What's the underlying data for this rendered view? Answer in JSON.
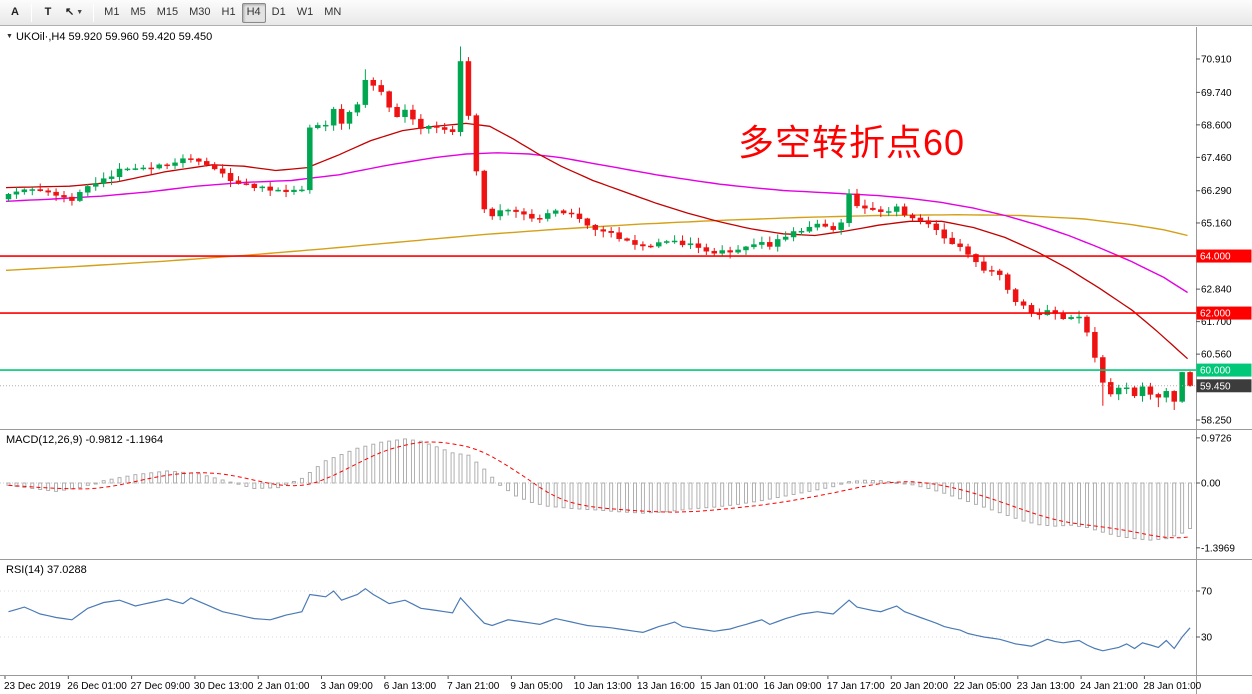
{
  "toolbar": {
    "tools": [
      {
        "label": "A"
      },
      {
        "label": "T"
      },
      {
        "label": "↖",
        "caret": "▼"
      }
    ],
    "timeframes": [
      {
        "label": "M1"
      },
      {
        "label": "M5"
      },
      {
        "label": "M15"
      },
      {
        "label": "M30"
      },
      {
        "label": "H1"
      },
      {
        "label": "H4"
      },
      {
        "label": "D1"
      },
      {
        "label": "W1"
      },
      {
        "label": "MN"
      }
    ],
    "active_timeframe": "H4"
  },
  "main": {
    "collapse_icon": "▼",
    "symbol_line": "UKOil·,H4 59.920 59.960 59.420 59.450",
    "annotation": {
      "text": "多空转折点60",
      "color": "#FF0000"
    },
    "macd_label": "MACD(12,26,9) -0.9812 -1.1964",
    "rsi_label": "RSI(14) 37.0288"
  },
  "colors": {
    "up_candle": "#00A650",
    "down_candle": "#EE1212",
    "ma_red": "#C40000",
    "ma_magenta": "#E300E3",
    "ma_orange": "#D4A017",
    "hline_red": "#FF0000",
    "hline_green": "#00C878",
    "bid_label_bg": "#3C3C3C",
    "macd_hist": "#A8A8A8",
    "macd_signal": "#FF0000",
    "rsi_line": "#4A7AB5",
    "axis_text": "#000000",
    "separator": "#9A9A9A"
  },
  "chart_data": {
    "type": "candlestick",
    "symbol": "UKOil",
    "timeframe": "H4",
    "ohlc_display": {
      "open": "59.920",
      "high": "59.960",
      "low": "59.420",
      "close": "59.450"
    },
    "bars": 150,
    "price_ticks": [
      {
        "v": 70.91,
        "label": "70.910"
      },
      {
        "v": 69.74,
        "label": "69.740"
      },
      {
        "v": 68.6,
        "label": "68.600"
      },
      {
        "v": 67.46,
        "label": "67.460"
      },
      {
        "v": 66.29,
        "label": "66.290"
      },
      {
        "v": 65.16,
        "label": "65.160"
      },
      {
        "v": 62.84,
        "label": "62.840"
      },
      {
        "v": 61.7,
        "label": "61.700"
      },
      {
        "v": 60.56,
        "label": "60.560"
      },
      {
        "v": 58.25,
        "label": "58.250"
      }
    ],
    "hlines": [
      {
        "price": 64.0,
        "label": "64.000",
        "color": "#FF0000"
      },
      {
        "price": 62.0,
        "label": "62.000",
        "color": "#FF0000"
      },
      {
        "price": 60.0,
        "label": "60.000",
        "color": "#00C878"
      }
    ],
    "current_price": {
      "value": 59.45,
      "label": "59.450"
    },
    "close_anchors": [
      [
        0,
        66.15
      ],
      [
        2,
        66.3
      ],
      [
        4,
        66.35
      ],
      [
        6,
        66.1
      ],
      [
        8,
        66.0
      ],
      [
        11,
        66.55
      ],
      [
        14,
        67.0
      ],
      [
        18,
        67.1
      ],
      [
        21,
        67.3
      ],
      [
        23,
        67.45
      ],
      [
        26,
        67.0
      ],
      [
        29,
        66.5
      ],
      [
        33,
        66.3
      ],
      [
        37,
        66.35
      ],
      [
        38,
        68.5
      ],
      [
        40,
        68.65
      ],
      [
        41,
        69.2
      ],
      [
        42,
        68.7
      ],
      [
        44,
        69.3
      ],
      [
        45,
        70.2
      ],
      [
        47,
        69.7
      ],
      [
        48,
        69.2
      ],
      [
        49,
        68.9
      ],
      [
        50,
        69.05
      ],
      [
        52,
        68.5
      ],
      [
        54,
        68.45
      ],
      [
        56,
        68.3
      ],
      [
        57,
        70.9
      ],
      [
        59,
        67.0
      ],
      [
        60,
        65.7
      ],
      [
        61,
        65.4
      ],
      [
        63,
        65.65
      ],
      [
        65,
        65.5
      ],
      [
        67,
        65.3
      ],
      [
        69,
        65.6
      ],
      [
        71,
        65.4
      ],
      [
        73,
        65.15
      ],
      [
        74,
        64.9
      ],
      [
        76,
        64.8
      ],
      [
        78,
        64.55
      ],
      [
        80,
        64.3
      ],
      [
        82,
        64.4
      ],
      [
        84,
        64.6
      ],
      [
        85,
        64.45
      ],
      [
        87,
        64.3
      ],
      [
        89,
        64.15
      ],
      [
        91,
        64.1
      ],
      [
        93,
        64.35
      ],
      [
        95,
        64.55
      ],
      [
        96,
        64.4
      ],
      [
        98,
        64.7
      ],
      [
        100,
        64.9
      ],
      [
        102,
        65.05
      ],
      [
        104,
        65.0
      ],
      [
        105,
        65.1
      ],
      [
        106,
        66.2
      ],
      [
        107,
        65.7
      ],
      [
        109,
        65.55
      ],
      [
        110,
        65.5
      ],
      [
        112,
        65.7
      ],
      [
        113,
        65.5
      ],
      [
        115,
        65.3
      ],
      [
        117,
        64.9
      ],
      [
        118,
        64.6
      ],
      [
        120,
        64.35
      ],
      [
        121,
        64.0
      ],
      [
        122,
        63.8
      ],
      [
        123,
        63.55
      ],
      [
        125,
        63.3
      ],
      [
        126,
        62.9
      ],
      [
        127,
        62.45
      ],
      [
        129,
        62.0
      ],
      [
        130,
        61.9
      ],
      [
        131,
        62.15
      ],
      [
        132,
        61.95
      ],
      [
        133,
        61.8
      ],
      [
        135,
        61.9
      ],
      [
        136,
        61.3
      ],
      [
        137,
        60.4
      ],
      [
        138,
        59.6
      ],
      [
        139,
        59.2
      ],
      [
        141,
        59.45
      ],
      [
        142,
        59.1
      ],
      [
        143,
        59.35
      ],
      [
        145,
        59.0
      ],
      [
        146,
        59.3
      ],
      [
        147,
        58.9
      ],
      [
        148,
        59.92
      ],
      [
        149,
        59.45
      ]
    ],
    "wick_overrides": {
      "45": {
        "h": 70.55
      },
      "57": {
        "h": 71.35,
        "l": 68.2
      },
      "106": {
        "h": 66.35
      },
      "138": {
        "l": 58.75
      },
      "145": {
        "l": 58.7
      },
      "147": {
        "l": 58.6
      },
      "148": {
        "h": 59.94
      },
      "149": {
        "h": 59.96,
        "l": 59.42
      }
    },
    "ma_red": [
      [
        0,
        66.4
      ],
      [
        8,
        66.45
      ],
      [
        14,
        66.6
      ],
      [
        20,
        66.95
      ],
      [
        26,
        67.2
      ],
      [
        30,
        67.15
      ],
      [
        34,
        67.0
      ],
      [
        38,
        67.1
      ],
      [
        42,
        67.55
      ],
      [
        46,
        68.05
      ],
      [
        50,
        68.4
      ],
      [
        54,
        68.55
      ],
      [
        58,
        68.65
      ],
      [
        61,
        68.55
      ],
      [
        64,
        68.1
      ],
      [
        67,
        67.6
      ],
      [
        70,
        67.15
      ],
      [
        74,
        66.65
      ],
      [
        78,
        66.25
      ],
      [
        82,
        65.85
      ],
      [
        86,
        65.5
      ],
      [
        90,
        65.2
      ],
      [
        94,
        64.95
      ],
      [
        98,
        64.78
      ],
      [
        102,
        64.72
      ],
      [
        106,
        64.88
      ],
      [
        110,
        65.08
      ],
      [
        114,
        65.22
      ],
      [
        118,
        65.22
      ],
      [
        122,
        65.0
      ],
      [
        126,
        64.65
      ],
      [
        130,
        64.15
      ],
      [
        134,
        63.55
      ],
      [
        138,
        62.85
      ],
      [
        142,
        62.1
      ],
      [
        145,
        61.4
      ],
      [
        147,
        60.9
      ],
      [
        149,
        60.4
      ]
    ],
    "ma_magenta": [
      [
        0,
        65.92
      ],
      [
        6,
        66.0
      ],
      [
        12,
        66.1
      ],
      [
        18,
        66.25
      ],
      [
        24,
        66.45
      ],
      [
        30,
        66.58
      ],
      [
        36,
        66.65
      ],
      [
        42,
        66.85
      ],
      [
        48,
        67.18
      ],
      [
        54,
        67.45
      ],
      [
        58,
        67.58
      ],
      [
        62,
        67.62
      ],
      [
        66,
        67.58
      ],
      [
        70,
        67.45
      ],
      [
        74,
        67.25
      ],
      [
        78,
        67.05
      ],
      [
        82,
        66.85
      ],
      [
        86,
        66.68
      ],
      [
        90,
        66.52
      ],
      [
        94,
        66.4
      ],
      [
        98,
        66.3
      ],
      [
        102,
        66.24
      ],
      [
        106,
        66.18
      ],
      [
        110,
        66.12
      ],
      [
        114,
        66.02
      ],
      [
        118,
        65.88
      ],
      [
        122,
        65.68
      ],
      [
        126,
        65.42
      ],
      [
        130,
        65.1
      ],
      [
        134,
        64.72
      ],
      [
        138,
        64.28
      ],
      [
        142,
        63.8
      ],
      [
        146,
        63.25
      ],
      [
        149,
        62.72
      ]
    ],
    "ma_orange": [
      [
        0,
        63.5
      ],
      [
        10,
        63.65
      ],
      [
        20,
        63.82
      ],
      [
        30,
        64.02
      ],
      [
        40,
        64.25
      ],
      [
        50,
        64.5
      ],
      [
        60,
        64.75
      ],
      [
        70,
        64.95
      ],
      [
        80,
        65.12
      ],
      [
        90,
        65.25
      ],
      [
        100,
        65.35
      ],
      [
        110,
        65.42
      ],
      [
        120,
        65.45
      ],
      [
        128,
        65.42
      ],
      [
        136,
        65.3
      ],
      [
        142,
        65.1
      ],
      [
        146,
        64.92
      ],
      [
        149,
        64.72
      ]
    ],
    "macd": {
      "values_display": {
        "main": "-0.9812",
        "signal": "-1.1964"
      },
      "ticks": [
        {
          "v": 0.9726,
          "label": "0.9726"
        },
        {
          "v": 0,
          "label": "0.00"
        },
        {
          "v": -1.3969,
          "label": "-1.3969"
        }
      ],
      "anchors": [
        [
          0,
          -0.05
        ],
        [
          3,
          -0.12
        ],
        [
          6,
          -0.18
        ],
        [
          9,
          -0.1
        ],
        [
          12,
          0.05
        ],
        [
          16,
          0.18
        ],
        [
          20,
          0.26
        ],
        [
          24,
          0.2
        ],
        [
          28,
          0.02
        ],
        [
          31,
          -0.12
        ],
        [
          34,
          -0.1
        ],
        [
          37,
          0.1
        ],
        [
          40,
          0.48
        ],
        [
          44,
          0.75
        ],
        [
          47,
          0.88
        ],
        [
          50,
          0.95
        ],
        [
          52,
          0.9
        ],
        [
          54,
          0.78
        ],
        [
          56,
          0.65
        ],
        [
          58,
          0.6
        ],
        [
          60,
          0.3
        ],
        [
          62,
          -0.05
        ],
        [
          64,
          -0.28
        ],
        [
          66,
          -0.42
        ],
        [
          68,
          -0.5
        ],
        [
          71,
          -0.55
        ],
        [
          74,
          -0.58
        ],
        [
          77,
          -0.62
        ],
        [
          80,
          -0.65
        ],
        [
          83,
          -0.62
        ],
        [
          86,
          -0.56
        ],
        [
          89,
          -0.52
        ],
        [
          92,
          -0.46
        ],
        [
          95,
          -0.38
        ],
        [
          98,
          -0.28
        ],
        [
          101,
          -0.18
        ],
        [
          104,
          -0.08
        ],
        [
          106,
          0.03
        ],
        [
          108,
          0.06
        ],
        [
          110,
          0.05
        ],
        [
          112,
          0.01
        ],
        [
          114,
          -0.04
        ],
        [
          116,
          -0.12
        ],
        [
          118,
          -0.22
        ],
        [
          120,
          -0.34
        ],
        [
          122,
          -0.46
        ],
        [
          124,
          -0.58
        ],
        [
          126,
          -0.7
        ],
        [
          128,
          -0.82
        ],
        [
          130,
          -0.9
        ],
        [
          132,
          -0.93
        ],
        [
          134,
          -0.91
        ],
        [
          136,
          -0.96
        ],
        [
          138,
          -1.06
        ],
        [
          140,
          -1.15
        ],
        [
          142,
          -1.2
        ],
        [
          144,
          -1.23
        ],
        [
          146,
          -1.2
        ],
        [
          148,
          -1.08
        ],
        [
          149,
          -0.98
        ]
      ]
    },
    "rsi": {
      "value_display": "37.0288",
      "ticks": [
        {
          "v": 70,
          "label": "70"
        },
        {
          "v": 30,
          "label": "30"
        }
      ],
      "anchors": [
        [
          0,
          52
        ],
        [
          2,
          56
        ],
        [
          4,
          50
        ],
        [
          6,
          47
        ],
        [
          8,
          45
        ],
        [
          10,
          55
        ],
        [
          12,
          60
        ],
        [
          14,
          62
        ],
        [
          16,
          57
        ],
        [
          18,
          60
        ],
        [
          20,
          63
        ],
        [
          22,
          59
        ],
        [
          23,
          64
        ],
        [
          25,
          58
        ],
        [
          27,
          52
        ],
        [
          29,
          49
        ],
        [
          31,
          46
        ],
        [
          33,
          45
        ],
        [
          35,
          49
        ],
        [
          37,
          52
        ],
        [
          38,
          67
        ],
        [
          40,
          65
        ],
        [
          41,
          70
        ],
        [
          42,
          62
        ],
        [
          44,
          67
        ],
        [
          45,
          72
        ],
        [
          46,
          67
        ],
        [
          47,
          63
        ],
        [
          48,
          59
        ],
        [
          50,
          62
        ],
        [
          52,
          55
        ],
        [
          54,
          53
        ],
        [
          56,
          51
        ],
        [
          57,
          64
        ],
        [
          59,
          49
        ],
        [
          60,
          42
        ],
        [
          61,
          40
        ],
        [
          63,
          45
        ],
        [
          65,
          43
        ],
        [
          67,
          41
        ],
        [
          69,
          46
        ],
        [
          71,
          43
        ],
        [
          73,
          40
        ],
        [
          76,
          38
        ],
        [
          78,
          36
        ],
        [
          80,
          34
        ],
        [
          82,
          39
        ],
        [
          84,
          43
        ],
        [
          85,
          39
        ],
        [
          87,
          37
        ],
        [
          89,
          35
        ],
        [
          91,
          37
        ],
        [
          93,
          41
        ],
        [
          95,
          45
        ],
        [
          96,
          41
        ],
        [
          98,
          46
        ],
        [
          100,
          50
        ],
        [
          102,
          52
        ],
        [
          104,
          50
        ],
        [
          106,
          62
        ],
        [
          107,
          56
        ],
        [
          109,
          53
        ],
        [
          110,
          52
        ],
        [
          112,
          57
        ],
        [
          113,
          52
        ],
        [
          115,
          47
        ],
        [
          117,
          42
        ],
        [
          118,
          39
        ],
        [
          120,
          36
        ],
        [
          121,
          33
        ],
        [
          123,
          30
        ],
        [
          125,
          28
        ],
        [
          126,
          26
        ],
        [
          127,
          24
        ],
        [
          129,
          22
        ],
        [
          131,
          28
        ],
        [
          132,
          26
        ],
        [
          133,
          25
        ],
        [
          135,
          27
        ],
        [
          136,
          23
        ],
        [
          137,
          20
        ],
        [
          138,
          18
        ],
        [
          140,
          21
        ],
        [
          141,
          24
        ],
        [
          142,
          20
        ],
        [
          143,
          25
        ],
        [
          145,
          21
        ],
        [
          146,
          27
        ],
        [
          147,
          20
        ],
        [
          148,
          30
        ],
        [
          149,
          38
        ]
      ]
    },
    "time_labels": [
      "23 Dec 2019",
      "26 Dec 01:00",
      "27 Dec 09:00",
      "30 Dec 13:00",
      "2 Jan 01:00",
      "3 Jan 09:00",
      "6 Jan 13:00",
      "7 Jan 21:00",
      "9 Jan 05:00",
      "10 Jan 13:00",
      "13 Jan 16:00",
      "15 Jan 01:00",
      "16 Jan 09:00",
      "17 Jan 17:00",
      "20 Jan 20:00",
      "22 Jan 05:00",
      "23 Jan 13:00",
      "24 Jan 21:00",
      "28 Jan 01:00"
    ]
  }
}
